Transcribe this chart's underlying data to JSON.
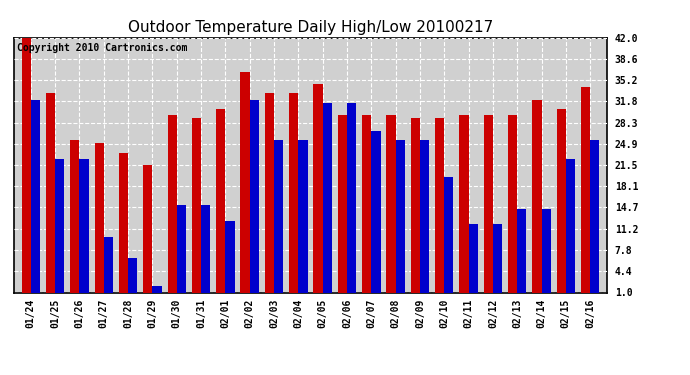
{
  "title": "Outdoor Temperature Daily High/Low 20100217",
  "copyright": "Copyright 2010 Cartronics.com",
  "dates": [
    "01/24",
    "01/25",
    "01/26",
    "01/27",
    "01/28",
    "01/29",
    "01/30",
    "01/31",
    "02/01",
    "02/02",
    "02/03",
    "02/04",
    "02/05",
    "02/06",
    "02/07",
    "02/08",
    "02/09",
    "02/10",
    "02/11",
    "02/12",
    "02/13",
    "02/14",
    "02/15",
    "02/16"
  ],
  "highs": [
    42.0,
    33.0,
    25.5,
    25.0,
    23.5,
    21.5,
    29.5,
    29.0,
    30.5,
    36.5,
    33.0,
    33.0,
    34.5,
    29.5,
    29.5,
    29.5,
    29.0,
    29.0,
    29.5,
    29.5,
    29.5,
    32.0,
    30.5,
    34.0
  ],
  "lows": [
    32.0,
    22.5,
    22.5,
    10.0,
    6.5,
    2.0,
    15.0,
    15.0,
    12.5,
    32.0,
    25.5,
    25.5,
    31.5,
    31.5,
    27.0,
    25.5,
    25.5,
    19.5,
    12.0,
    12.0,
    14.5,
    14.5,
    22.5,
    25.5
  ],
  "high_color": "#cc0000",
  "low_color": "#0000cc",
  "bg_color": "#ffffff",
  "plot_bg_color": "#d0d0d0",
  "grid_color": "#ffffff",
  "ylim_min": 1.0,
  "ylim_max": 42.0,
  "yticks": [
    1.0,
    4.4,
    7.8,
    11.2,
    14.7,
    18.1,
    21.5,
    24.9,
    28.3,
    31.8,
    35.2,
    38.6,
    42.0
  ],
  "title_fontsize": 11,
  "copyright_fontsize": 7,
  "bar_width": 0.38,
  "figwidth": 6.9,
  "figheight": 3.75,
  "dpi": 100
}
